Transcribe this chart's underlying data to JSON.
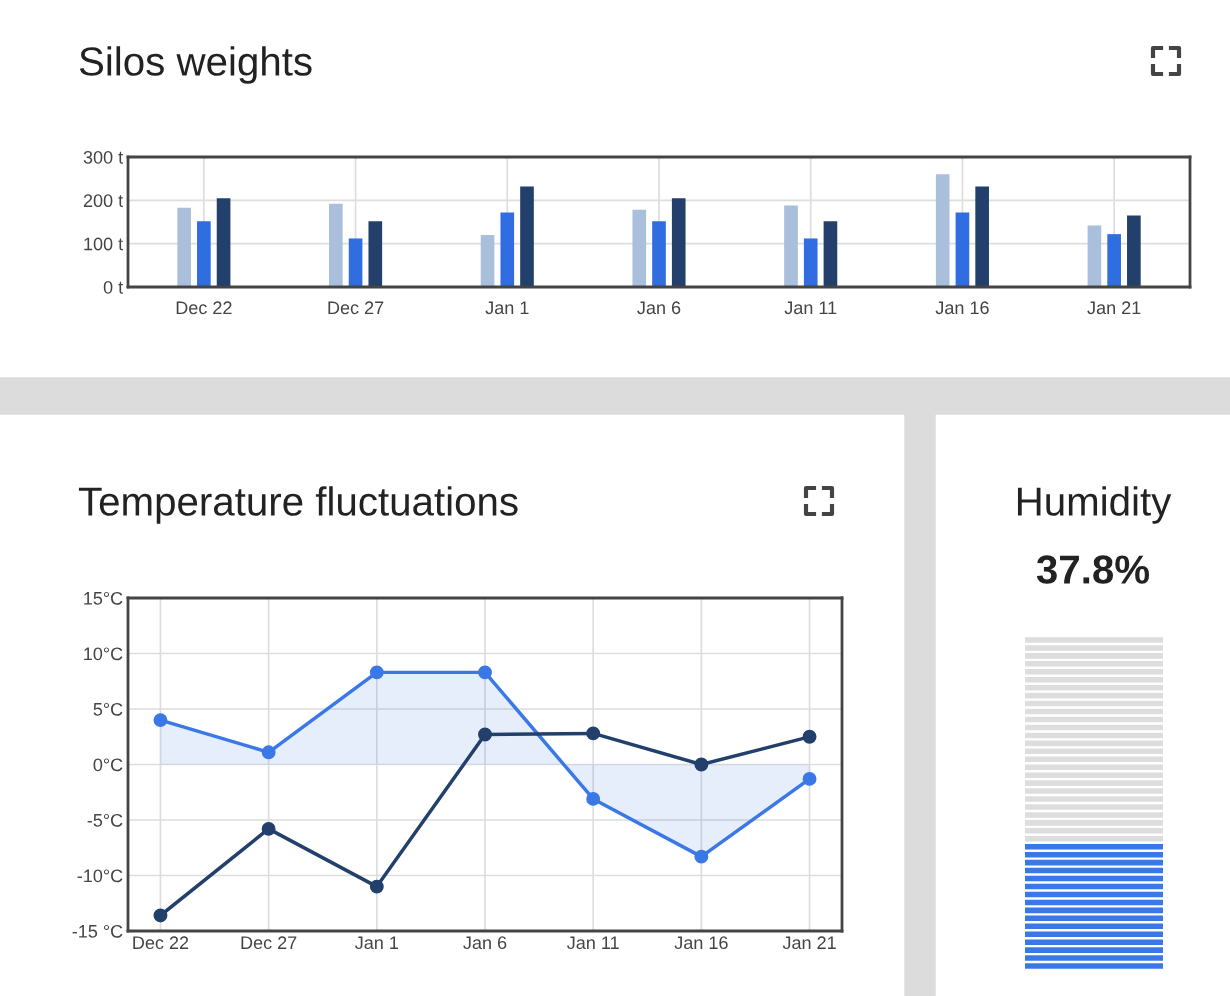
{
  "chart_data": [
    {
      "type": "bar",
      "title": "Silos weights",
      "categories": [
        "Dec 22",
        "Dec 27",
        "Jan 1",
        "Jan 6",
        "Jan 11",
        "Jan 16",
        "Jan 21"
      ],
      "series": [
        {
          "color": "#a9bfdc",
          "values": [
            183,
            192,
            120,
            178,
            188,
            260,
            142
          ]
        },
        {
          "color": "#2f6de1",
          "values": [
            152,
            112,
            172,
            152,
            112,
            172,
            122
          ]
        },
        {
          "color": "#233f6b",
          "values": [
            205,
            152,
            232,
            205,
            152,
            232,
            165
          ]
        }
      ],
      "ylim": [
        0,
        300
      ],
      "yticks": [
        {
          "value": 0,
          "label": "0 t"
        },
        {
          "value": 100,
          "label": "100 t"
        },
        {
          "value": 200,
          "label": "200 t"
        },
        {
          "value": 300,
          "label": "300 t"
        }
      ],
      "grid": true
    },
    {
      "type": "line",
      "title": "Temperature fluctuations",
      "marker": "circle",
      "categories": [
        "Dec 22",
        "Dec 27",
        "Jan 1",
        "Jan 6",
        "Jan 11",
        "Jan 16",
        "Jan 21"
      ],
      "series": [
        {
          "type": "area",
          "color": "#3b78e7",
          "values": [
            4.0,
            1.1,
            8.3,
            8.3,
            -3.1,
            -8.3,
            -1.3
          ]
        },
        {
          "type": "line",
          "color": "#233f6b",
          "values": [
            -13.6,
            -5.8,
            -11.0,
            2.7,
            2.8,
            0.0,
            2.5
          ]
        }
      ],
      "ylim": [
        -15,
        15
      ],
      "yticks": [
        {
          "value": -15,
          "label": "-15 °C"
        },
        {
          "value": -10,
          "label": "-10°C"
        },
        {
          "value": -5,
          "label": "-5°C"
        },
        {
          "value": 0,
          "label": "0°C"
        },
        {
          "value": 5,
          "label": "5°C"
        },
        {
          "value": 10,
          "label": "10°C"
        },
        {
          "value": 15,
          "label": "15°C"
        }
      ],
      "grid": true
    },
    {
      "type": "other",
      "title": "Humidity",
      "values": [
        37.8
      ],
      "value_labels": [
        "37.8%"
      ],
      "colors": [
        "#3b78e7"
      ]
    }
  ]
}
